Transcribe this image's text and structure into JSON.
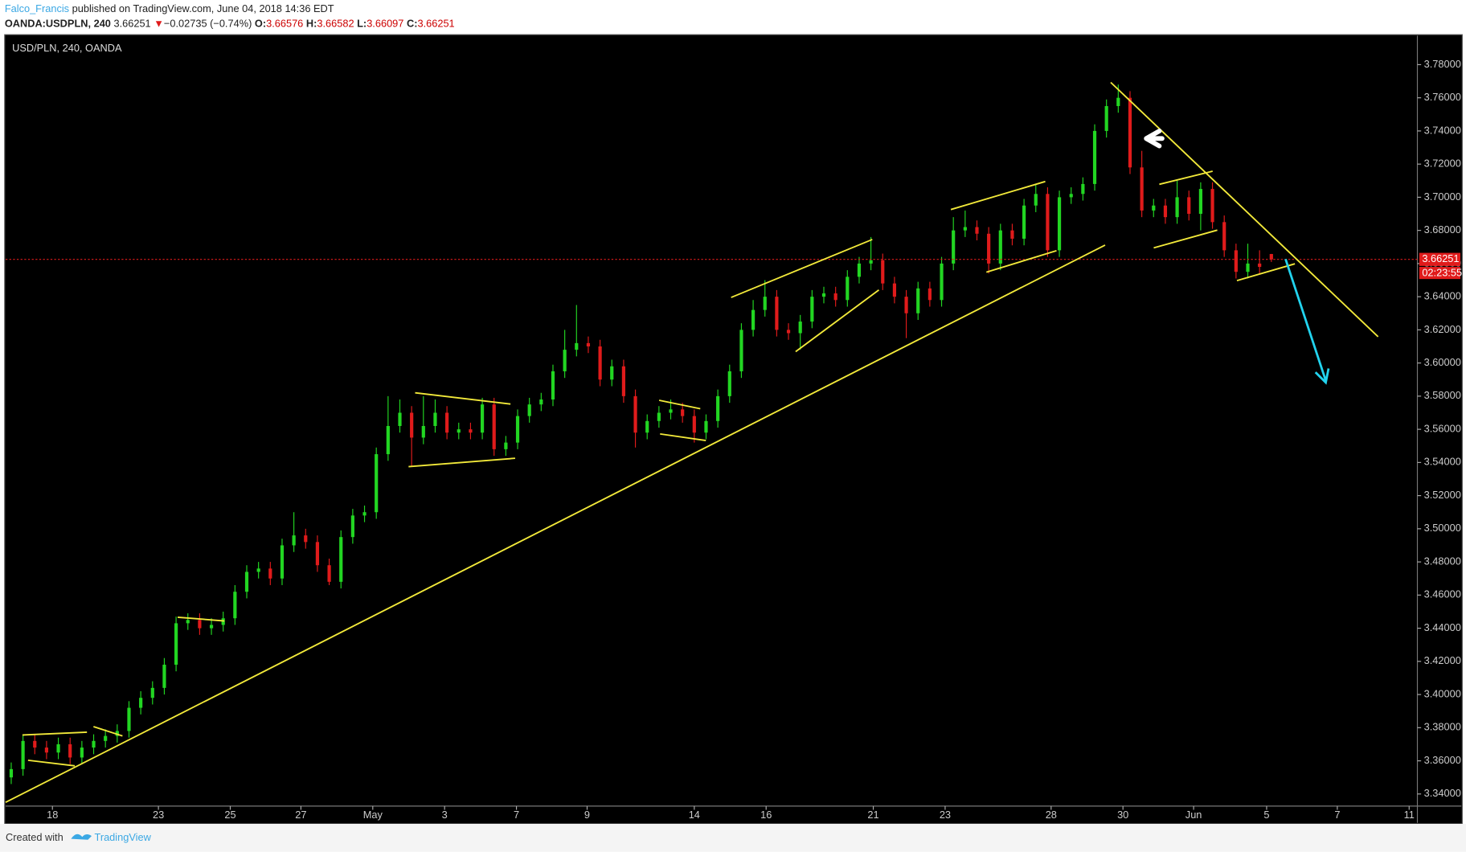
{
  "header": {
    "author": "Falco_Francis",
    "published": "published on TradingView.com, June 04, 2018 14:36 EDT",
    "symbol": "OANDA:USDPLN, 240",
    "change": "−0.02735 (−0.74%)",
    "open_label": "O:",
    "high_label": "H:",
    "low_label": "L:",
    "close_label": "C:"
  },
  "footer": {
    "created": "Created with",
    "brand": "TradingView"
  },
  "chart_data": {
    "type": "candlestick",
    "title": "USD/PLN, 240, OANDA",
    "up_color": "#22d622",
    "down_color": "#e01b1b",
    "candles": {
      "open": [
        3.35,
        3.355,
        3.372,
        3.368,
        3.365,
        3.37,
        3.362,
        3.368,
        3.372,
        3.375,
        3.378,
        3.392,
        3.398,
        3.404,
        3.418,
        3.443,
        3.445,
        3.44,
        3.442,
        3.446,
        3.462,
        3.474,
        3.476,
        3.47,
        3.49,
        3.496,
        3.492,
        3.478,
        3.468,
        3.495,
        3.508,
        3.51,
        3.545,
        3.562,
        3.57,
        3.555,
        3.562,
        3.57,
        3.558,
        3.56,
        3.558,
        3.575,
        3.548,
        3.552,
        3.568,
        3.575,
        3.578,
        3.595,
        3.608,
        3.612,
        3.61,
        3.59,
        3.598,
        3.58,
        3.558,
        3.565,
        3.57,
        3.572,
        3.568,
        3.558,
        3.565,
        3.58,
        3.595,
        3.62,
        3.632,
        3.64,
        3.62,
        3.618,
        3.625,
        3.64,
        3.642,
        3.638,
        3.652,
        3.66,
        3.662,
        3.648,
        3.64,
        3.63,
        3.645,
        3.638,
        3.66,
        3.68,
        3.682,
        3.678,
        3.66,
        3.68,
        3.675,
        3.695,
        3.702,
        3.668,
        3.7,
        3.702,
        3.708,
        3.74,
        3.755,
        3.76,
        3.718,
        3.692,
        3.695,
        3.688,
        3.7,
        3.69,
        3.705,
        3.685,
        3.668,
        3.655,
        3.66,
        3.66576
      ],
      "high": [
        3.359,
        3.376,
        3.376,
        3.372,
        3.374,
        3.374,
        3.372,
        3.376,
        3.379,
        3.382,
        3.396,
        3.402,
        3.408,
        3.422,
        3.447,
        3.449,
        3.449,
        3.446,
        3.45,
        3.466,
        3.478,
        3.48,
        3.48,
        3.494,
        3.51,
        3.5,
        3.496,
        3.482,
        3.499,
        3.512,
        3.514,
        3.549,
        3.58,
        3.578,
        3.574,
        3.58,
        3.578,
        3.574,
        3.564,
        3.564,
        3.579,
        3.579,
        3.556,
        3.572,
        3.579,
        3.582,
        3.599,
        3.62,
        3.635,
        3.616,
        3.614,
        3.602,
        3.602,
        3.584,
        3.569,
        3.574,
        3.578,
        3.576,
        3.572,
        3.569,
        3.584,
        3.599,
        3.624,
        3.638,
        3.65,
        3.644,
        3.624,
        3.629,
        3.644,
        3.646,
        3.646,
        3.656,
        3.664,
        3.676,
        3.666,
        3.652,
        3.644,
        3.649,
        3.649,
        3.664,
        3.688,
        3.692,
        3.686,
        3.682,
        3.684,
        3.684,
        3.699,
        3.708,
        3.706,
        3.704,
        3.706,
        3.712,
        3.744,
        3.759,
        3.768,
        3.764,
        3.728,
        3.699,
        3.699,
        3.71,
        3.704,
        3.709,
        3.709,
        3.689,
        3.672,
        3.672,
        3.668,
        3.66582
      ],
      "low": [
        3.346,
        3.351,
        3.364,
        3.361,
        3.361,
        3.358,
        3.358,
        3.364,
        3.368,
        3.371,
        3.374,
        3.388,
        3.394,
        3.4,
        3.414,
        3.439,
        3.436,
        3.436,
        3.438,
        3.442,
        3.458,
        3.47,
        3.466,
        3.466,
        3.486,
        3.488,
        3.474,
        3.466,
        3.464,
        3.491,
        3.504,
        3.506,
        3.541,
        3.558,
        3.538,
        3.551,
        3.558,
        3.554,
        3.554,
        3.554,
        3.554,
        3.544,
        3.544,
        3.548,
        3.564,
        3.571,
        3.574,
        3.591,
        3.604,
        3.606,
        3.586,
        3.586,
        3.576,
        3.549,
        3.554,
        3.561,
        3.566,
        3.564,
        3.552,
        3.554,
        3.561,
        3.576,
        3.591,
        3.616,
        3.628,
        3.616,
        3.614,
        3.608,
        3.621,
        3.636,
        3.634,
        3.634,
        3.648,
        3.656,
        3.644,
        3.636,
        3.615,
        3.626,
        3.634,
        3.634,
        3.656,
        3.676,
        3.674,
        3.654,
        3.656,
        3.671,
        3.671,
        3.691,
        3.664,
        3.664,
        3.696,
        3.698,
        3.704,
        3.736,
        3.751,
        3.714,
        3.688,
        3.688,
        3.684,
        3.684,
        3.686,
        3.68,
        3.681,
        3.664,
        3.651,
        3.651,
        3.654,
        3.66097
      ],
      "close": [
        3.355,
        3.372,
        3.368,
        3.365,
        3.37,
        3.362,
        3.368,
        3.372,
        3.375,
        3.378,
        3.392,
        3.398,
        3.404,
        3.418,
        3.443,
        3.445,
        3.44,
        3.442,
        3.446,
        3.462,
        3.474,
        3.476,
        3.47,
        3.49,
        3.496,
        3.492,
        3.478,
        3.468,
        3.495,
        3.508,
        3.51,
        3.545,
        3.562,
        3.57,
        3.555,
        3.562,
        3.57,
        3.558,
        3.56,
        3.558,
        3.575,
        3.548,
        3.552,
        3.568,
        3.575,
        3.578,
        3.595,
        3.608,
        3.612,
        3.61,
        3.59,
        3.598,
        3.58,
        3.558,
        3.565,
        3.57,
        3.572,
        3.568,
        3.558,
        3.565,
        3.58,
        3.595,
        3.62,
        3.632,
        3.64,
        3.62,
        3.618,
        3.625,
        3.64,
        3.642,
        3.638,
        3.652,
        3.66,
        3.662,
        3.648,
        3.64,
        3.63,
        3.645,
        3.638,
        3.66,
        3.68,
        3.682,
        3.678,
        3.66,
        3.68,
        3.675,
        3.695,
        3.702,
        3.668,
        3.7,
        3.702,
        3.708,
        3.74,
        3.755,
        3.76,
        3.718,
        3.692,
        3.695,
        3.688,
        3.7,
        3.69,
        3.705,
        3.685,
        3.668,
        3.655,
        3.66,
        3.658,
        3.66251
      ]
    },
    "xlim": [
      -0.476,
      119.4
    ],
    "xticks": [
      {
        "value": 3.5,
        "label": "18"
      },
      {
        "value": 12.5,
        "label": "23"
      },
      {
        "value": 18.6,
        "label": "25"
      },
      {
        "value": 24.6,
        "label": "27"
      },
      {
        "value": 30.7,
        "label": "May"
      },
      {
        "value": 36.8,
        "label": "3"
      },
      {
        "value": 42.9,
        "label": "7"
      },
      {
        "value": 48.9,
        "label": "9"
      },
      {
        "value": 58.0,
        "label": "14"
      },
      {
        "value": 64.1,
        "label": "16"
      },
      {
        "value": 73.2,
        "label": "21"
      },
      {
        "value": 79.3,
        "label": "23"
      },
      {
        "value": 88.3,
        "label": "28"
      },
      {
        "value": 94.4,
        "label": "30"
      },
      {
        "value": 100.4,
        "label": "Jun"
      },
      {
        "value": 106.6,
        "label": "5"
      },
      {
        "value": 112.6,
        "label": "7"
      },
      {
        "value": 118.7,
        "label": "11"
      }
    ],
    "ylim": [
      3.3327,
      3.7975
    ],
    "yticks": [
      {
        "value": 3.34,
        "label": "3.34000"
      },
      {
        "value": 3.36,
        "label": "3.36000"
      },
      {
        "value": 3.38,
        "label": "3.38000"
      },
      {
        "value": 3.4,
        "label": "3.40000"
      },
      {
        "value": 3.42,
        "label": "3.42000"
      },
      {
        "value": 3.44,
        "label": "3.44000"
      },
      {
        "value": 3.46,
        "label": "3.46000"
      },
      {
        "value": 3.48,
        "label": "3.48000"
      },
      {
        "value": 3.5,
        "label": "3.50000"
      },
      {
        "value": 3.52,
        "label": "3.52000"
      },
      {
        "value": 3.54,
        "label": "3.54000"
      },
      {
        "value": 3.56,
        "label": "3.56000"
      },
      {
        "value": 3.58,
        "label": "3.58000"
      },
      {
        "value": 3.6,
        "label": "3.60000"
      },
      {
        "value": 3.62,
        "label": "3.62000"
      },
      {
        "value": 3.64,
        "label": "3.64000"
      },
      {
        "value": 3.66,
        "label": "3.66000"
      },
      {
        "value": 3.68,
        "label": "3.68000"
      },
      {
        "value": 3.7,
        "label": "3.70000"
      },
      {
        "value": 3.72,
        "label": "3.72000"
      },
      {
        "value": 3.74,
        "label": "3.74000"
      },
      {
        "value": 3.76,
        "label": "3.76000"
      },
      {
        "value": 3.78,
        "label": "3.78000"
      }
    ],
    "countdown": "02:23:55"
  }
}
